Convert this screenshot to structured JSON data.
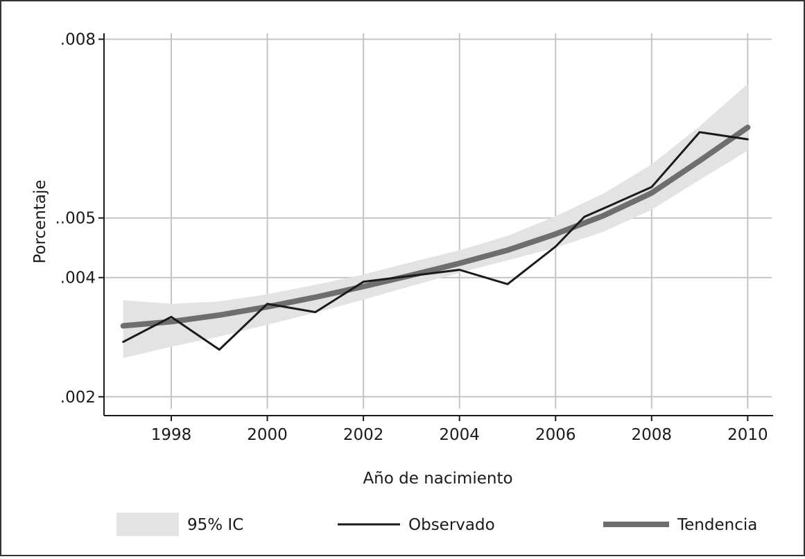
{
  "chart_data": {
    "type": "line",
    "xlabel": "Año de nacimiento",
    "ylabel": "Porcentaje",
    "xlim": [
      1996.6,
      2010.5
    ],
    "ylim": [
      0.0018,
      0.0081
    ],
    "x_ticks": [
      1998,
      2000,
      2002,
      2004,
      2006,
      2008,
      2010
    ],
    "x_tick_labels": [
      "1998",
      "2000",
      "2002",
      "2004",
      "2006",
      "2008",
      "2010"
    ],
    "y_ticks": [
      0.002,
      0.004,
      0.005,
      0.008
    ],
    "y_tick_labels": [
      ".002",
      ".004",
      "..005",
      ".008"
    ],
    "grid": true,
    "legend_position": "bottom",
    "series": [
      {
        "name": "Observado",
        "kind": "line",
        "color": "#1a1a1a",
        "x": [
          1997,
          1998,
          1999,
          2000,
          2001,
          2002,
          2003,
          2004,
          2005,
          2006,
          2006.6,
          2007,
          2008,
          2009,
          2010
        ],
        "y": [
          0.00292,
          0.00334,
          0.00279,
          0.00356,
          0.00342,
          0.00393,
          0.00403,
          0.00413,
          0.00389,
          0.00452,
          0.00502,
          0.00516,
          0.00552,
          0.00644,
          0.00632
        ]
      },
      {
        "name": "Tendencia",
        "kind": "line",
        "color": "#6e6e6e",
        "x": [
          1997,
          1998,
          1999,
          2000,
          2001,
          2002,
          2003,
          2004,
          2005,
          2006,
          2007,
          2008,
          2009,
          2010
        ],
        "y": [
          0.00319,
          0.00326,
          0.00337,
          0.00351,
          0.00367,
          0.00385,
          0.00404,
          0.00424,
          0.00446,
          0.00473,
          0.00504,
          0.00542,
          0.00596,
          0.00652
        ]
      }
    ],
    "band": {
      "name": "95% IC",
      "color": "#e3e3e3",
      "x": [
        1997,
        1998,
        1999,
        2000,
        2001,
        2002,
        2003,
        2004,
        2005,
        2006,
        2007,
        2008,
        2009,
        2010
      ],
      "lower": [
        0.00265,
        0.00284,
        0.00301,
        0.00321,
        0.00341,
        0.00363,
        0.00386,
        0.00408,
        0.00429,
        0.0045,
        0.00477,
        0.00514,
        0.00564,
        0.00613
      ],
      "upper": [
        0.00362,
        0.00356,
        0.0036,
        0.00372,
        0.00388,
        0.00405,
        0.00426,
        0.00446,
        0.0047,
        0.00503,
        0.00541,
        0.0059,
        0.00654,
        0.00725
      ]
    },
    "legend": [
      {
        "label": "95% IC",
        "kind": "band",
        "color": "#e3e3e3"
      },
      {
        "label": "Observado",
        "kind": "line",
        "color": "#1a1a1a"
      },
      {
        "label": "Tendencia",
        "kind": "thick-line",
        "color": "#6e6e6e"
      }
    ]
  }
}
